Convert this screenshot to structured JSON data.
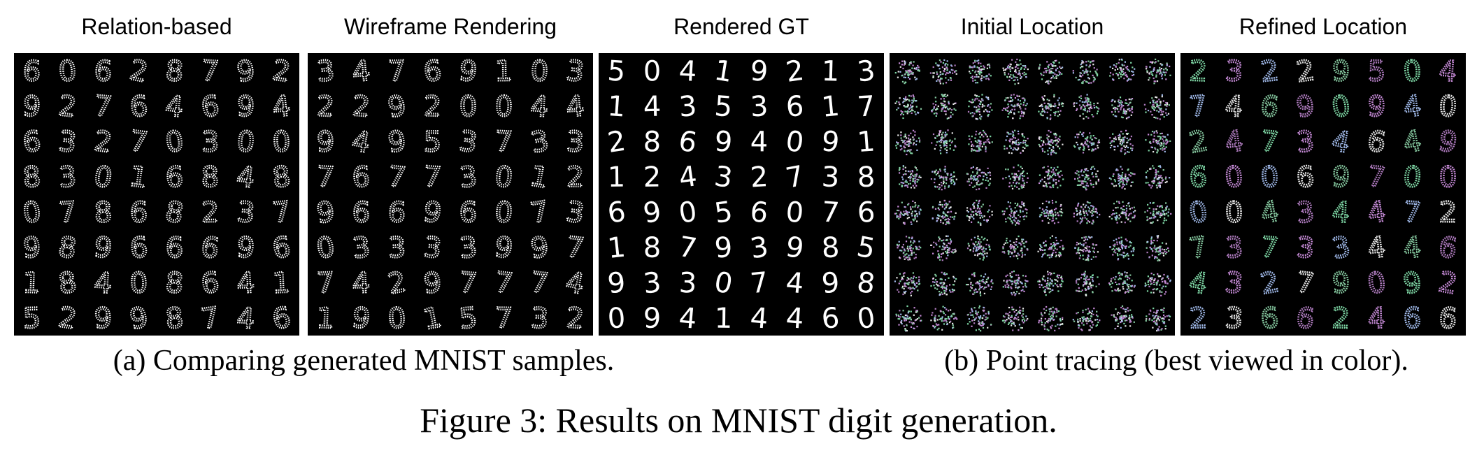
{
  "panels": [
    {
      "id": "relation",
      "title": "Relation-based",
      "style": "dots-white",
      "digits": [
        "6",
        "0",
        "6",
        "2",
        "8",
        "7",
        "9",
        "2",
        "9",
        "2",
        "7",
        "6",
        "4",
        "6",
        "9",
        "4",
        "6",
        "3",
        "2",
        "7",
        "0",
        "3",
        "0",
        "0",
        "8",
        "3",
        "0",
        "1",
        "6",
        "8",
        "4",
        "8",
        "0",
        "7",
        "8",
        "6",
        "8",
        "2",
        "3",
        "7",
        "9",
        "8",
        "9",
        "6",
        "6",
        "6",
        "9",
        "6",
        "1",
        "8",
        "4",
        "0",
        "8",
        "6",
        "4",
        "1",
        "5",
        "2",
        "9",
        "9",
        "8",
        "7",
        "4",
        "6"
      ]
    },
    {
      "id": "wireframe",
      "title": "Wireframe Rendering",
      "style": "dots-white",
      "digits": [
        "3",
        "4",
        "7",
        "6",
        "9",
        "1",
        "0",
        "3",
        "2",
        "2",
        "9",
        "2",
        "0",
        "0",
        "4",
        "4",
        "9",
        "4",
        "9",
        "5",
        "3",
        "7",
        "3",
        "3",
        "7",
        "6",
        "7",
        "7",
        "3",
        "0",
        "1",
        "2",
        "9",
        "6",
        "6",
        "9",
        "6",
        "0",
        "7",
        "3",
        "0",
        "3",
        "3",
        "3",
        "3",
        "9",
        "9",
        "7",
        "7",
        "4",
        "2",
        "9",
        "7",
        "7",
        "7",
        "4",
        "1",
        "9",
        "0",
        "1",
        "5",
        "7",
        "3",
        "2"
      ]
    },
    {
      "id": "rendered",
      "title": "Rendered GT",
      "style": "solid-white",
      "digits": [
        "5",
        "0",
        "4",
        "1",
        "9",
        "2",
        "1",
        "3",
        "1",
        "4",
        "3",
        "5",
        "3",
        "6",
        "1",
        "7",
        "2",
        "8",
        "6",
        "9",
        "4",
        "0",
        "9",
        "1",
        "1",
        "2",
        "4",
        "3",
        "2",
        "7",
        "3",
        "8",
        "6",
        "9",
        "0",
        "5",
        "6",
        "0",
        "7",
        "6",
        "1",
        "8",
        "7",
        "9",
        "3",
        "9",
        "8",
        "5",
        "9",
        "3",
        "3",
        "0",
        "7",
        "4",
        "9",
        "8",
        "0",
        "9",
        "4",
        "1",
        "4",
        "4",
        "6",
        "0"
      ]
    },
    {
      "id": "initial",
      "title": "Initial Location",
      "style": "colored-blobs",
      "digits": []
    },
    {
      "id": "refined",
      "title": "Refined Location",
      "style": "colored-dots",
      "digits": [
        "2",
        "3",
        "2",
        "2",
        "9",
        "5",
        "0",
        "4",
        "7",
        "4",
        "6",
        "9",
        "0",
        "9",
        "4",
        "0",
        "2",
        "4",
        "7",
        "3",
        "4",
        "6",
        "4",
        "9",
        "6",
        "0",
        "0",
        "6",
        "9",
        "7",
        "0",
        "0",
        "0",
        "0",
        "4",
        "3",
        "4",
        "4",
        "7",
        "2",
        "7",
        "3",
        "7",
        "3",
        "3",
        "4",
        "4",
        "6",
        "4",
        "3",
        "2",
        "7",
        "9",
        "0",
        "9",
        "2",
        "2",
        "3",
        "6",
        "6",
        "2",
        "4",
        "6",
        "6"
      ]
    }
  ],
  "subcaptions": {
    "a": "(a) Comparing generated MNIST samples.",
    "b": "(b) Point tracing (best viewed in color)."
  },
  "figure_caption": "Figure 3: Results on MNIST digit generation.",
  "colors": {
    "panel_bg": "#000000",
    "digit": "#ffffff",
    "point_palette": [
      "#7fd8a6",
      "#c58ad6",
      "#9fb8e8",
      "#e8e8e8",
      "#86c9a0",
      "#b07cc0"
    ]
  }
}
